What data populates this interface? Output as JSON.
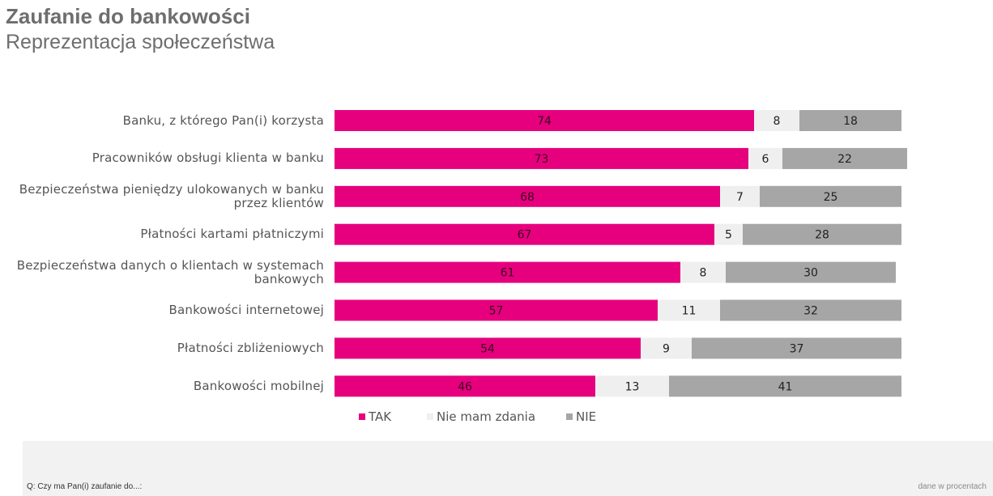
{
  "header": {
    "title": "Zaufanie do bankowości",
    "subtitle": "Reprezentacja społeczeństwa"
  },
  "footer": {
    "question": "Q: Czy ma Pan(i) zaufanie do...:",
    "unit_note": "dane w procentach"
  },
  "colors": {
    "tak": "#e6007e",
    "nie_mam_zdania": "#efefef",
    "nie": "#a6a6a6"
  },
  "chart_data": {
    "type": "bar",
    "orientation": "horizontal",
    "stacked": true,
    "categories": [
      "Banku, z którego Pan(i) korzysta",
      "Pracowników obsługi klienta w banku",
      "Bezpieczeństwa pieniędzy ulokowanych w banku przez klientów",
      "Płatności kartami płatniczymi",
      "Bezpieczeństwa danych o klientach w systemach bankowych",
      "Bankowości internetowej",
      "Płatności zbliżeniowych",
      "Bankowości mobilnej"
    ],
    "series": [
      {
        "name": "TAK",
        "values": [
          74,
          73,
          68,
          67,
          61,
          57,
          54,
          46
        ]
      },
      {
        "name": "Nie mam zdania",
        "values": [
          8,
          6,
          7,
          5,
          8,
          11,
          9,
          13
        ]
      },
      {
        "name": "NIE",
        "values": [
          18,
          22,
          25,
          28,
          30,
          32,
          37,
          41
        ]
      }
    ],
    "xlim": [
      0,
      100
    ],
    "grid": false,
    "legend_position": "bottom",
    "data_labels": true
  }
}
